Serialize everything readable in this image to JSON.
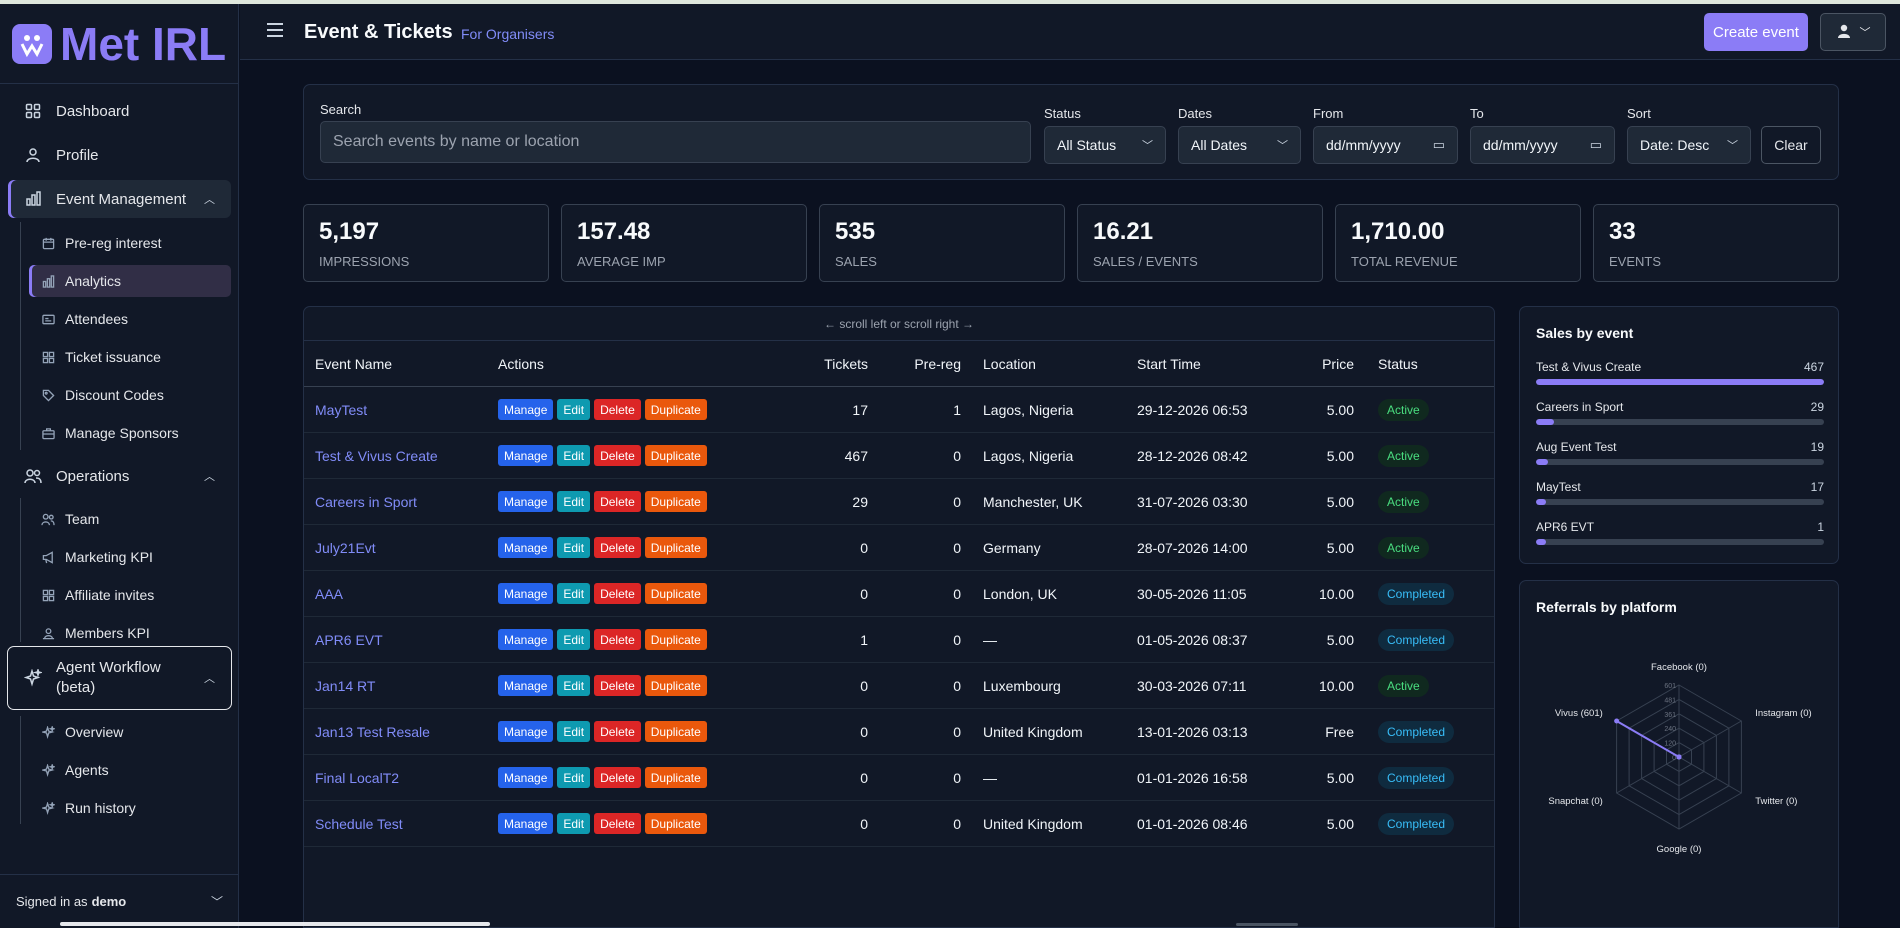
{
  "app": {
    "logo_text": "Met IRL",
    "title": "Event & Tickets",
    "subtitle": "For Organisers",
    "create_event_label": "Create event",
    "accent": "#8b7cf6"
  },
  "sidebar": {
    "items": [
      {
        "label": "Dashboard",
        "icon": "grid-icon"
      },
      {
        "label": "Profile",
        "icon": "user-icon"
      },
      {
        "label": "Event Management",
        "icon": "bar-chart-icon"
      },
      {
        "label": "Operations",
        "icon": "users-icon"
      }
    ],
    "event_sub": [
      {
        "label": "Pre-reg interest",
        "icon": "calendar-icon"
      },
      {
        "label": "Analytics",
        "icon": "bar-chart-icon"
      },
      {
        "label": "Attendees",
        "icon": "id-card-icon"
      },
      {
        "label": "Ticket issuance",
        "icon": "grid-icon"
      },
      {
        "label": "Discount Codes",
        "icon": "tag-icon"
      },
      {
        "label": "Manage Sponsors",
        "icon": "briefcase-icon"
      }
    ],
    "ops_sub": [
      {
        "label": "Team",
        "icon": "users-icon"
      },
      {
        "label": "Marketing KPI",
        "icon": "megaphone-icon"
      },
      {
        "label": "Affiliate invites",
        "icon": "grid-icon"
      },
      {
        "label": "Members KPI",
        "icon": "user-group-icon"
      }
    ],
    "agent": {
      "label_line1": "Agent Workflow",
      "label_line2": "(beta)"
    },
    "agent_sub": [
      {
        "label": "Overview",
        "icon": "sparkle-icon"
      },
      {
        "label": "Agents",
        "icon": "sparkle-icon"
      },
      {
        "label": "Run history",
        "icon": "sparkle-icon"
      }
    ],
    "signed_in_prefix": "Signed in as",
    "signed_in_user": "demo"
  },
  "filters": {
    "search_label": "Search",
    "search_placeholder": "Search events by name or location",
    "status_label": "Status",
    "status_value": "All Status",
    "dates_label": "Dates",
    "dates_value": "All Dates",
    "from_label": "From",
    "from_value": "dd/mm/yyyy",
    "to_label": "To",
    "to_value": "dd/mm/yyyy",
    "sort_label": "Sort",
    "sort_value": "Date: Desc",
    "clear_label": "Clear"
  },
  "kpis": [
    {
      "value": "5,197",
      "label": "IMPRESSIONS"
    },
    {
      "value": "157.48",
      "label": "AVERAGE IMP"
    },
    {
      "value": "535",
      "label": "SALES"
    },
    {
      "value": "16.21",
      "label": "SALES / EVENTS"
    },
    {
      "value": "1,710.00",
      "label": "TOTAL REVENUE"
    },
    {
      "value": "33",
      "label": "EVENTS"
    }
  ],
  "table": {
    "scroll_hint": "← scroll left or scroll right →",
    "headers": [
      "Event Name",
      "Actions",
      "Tickets",
      "Pre-reg",
      "Location",
      "Start Time",
      "Price",
      "Status"
    ],
    "actions": [
      "Manage",
      "Edit",
      "Delete",
      "Duplicate"
    ],
    "rows": [
      {
        "name": "MayTest",
        "tickets": "17",
        "prereg": "1",
        "location": "Lagos, Nigeria",
        "start": "29-12-2026 06:53",
        "price": "5.00",
        "status": "Active"
      },
      {
        "name": "Test & Vivus Create",
        "tickets": "467",
        "prereg": "0",
        "location": "Lagos, Nigeria",
        "start": "28-12-2026 08:42",
        "price": "5.00",
        "status": "Active"
      },
      {
        "name": "Careers in Sport",
        "tickets": "29",
        "prereg": "0",
        "location": "Manchester, UK",
        "start": "31-07-2026 03:30",
        "price": "5.00",
        "status": "Active"
      },
      {
        "name": "July21Evt",
        "tickets": "0",
        "prereg": "0",
        "location": "Germany",
        "start": "28-07-2026 14:00",
        "price": "5.00",
        "status": "Active"
      },
      {
        "name": "AAA",
        "tickets": "0",
        "prereg": "0",
        "location": "London, UK",
        "start": "30-05-2026 11:05",
        "price": "10.00",
        "status": "Completed"
      },
      {
        "name": "APR6 EVT",
        "tickets": "1",
        "prereg": "0",
        "location": "—",
        "start": "01-05-2026 08:37",
        "price": "5.00",
        "status": "Completed"
      },
      {
        "name": "Jan14 RT",
        "tickets": "0",
        "prereg": "0",
        "location": "Luxembourg",
        "start": "30-03-2026 07:11",
        "price": "10.00",
        "status": "Active"
      },
      {
        "name": "Jan13 Test Resale",
        "tickets": "0",
        "prereg": "0",
        "location": "United Kingdom",
        "start": "13-01-2026 03:13",
        "price": "Free",
        "status": "Completed"
      },
      {
        "name": "Final LocalT2",
        "tickets": "0",
        "prereg": "0",
        "location": "—",
        "start": "01-01-2026 16:58",
        "price": "5.00",
        "status": "Completed"
      },
      {
        "name": "Schedule Test",
        "tickets": "0",
        "prereg": "0",
        "location": "United Kingdom",
        "start": "01-01-2026 08:46",
        "price": "5.00",
        "status": "Completed"
      }
    ]
  },
  "sales_by_event": {
    "title": "Sales by event",
    "max": 467,
    "items": [
      {
        "label": "Test & Vivus Create",
        "value": 467
      },
      {
        "label": "Careers in Sport",
        "value": 29
      },
      {
        "label": "Aug Event Test",
        "value": 19
      },
      {
        "label": "MayTest",
        "value": 17
      },
      {
        "label": "APR6 EVT",
        "value": 1
      }
    ]
  },
  "referrals": {
    "title": "Referrals by platform",
    "ticks": [
      "601",
      "481",
      "361",
      "240",
      "120",
      "0"
    ],
    "axes": [
      {
        "label": "Facebook (0)",
        "value": 0
      },
      {
        "label": "Instagram (0)",
        "value": 0
      },
      {
        "label": "Twitter (0)",
        "value": 0
      },
      {
        "label": "Google (0)",
        "value": 0
      },
      {
        "label": "Snapchat (0)",
        "value": 0
      },
      {
        "label": "Vivus (601)",
        "value": 601
      }
    ],
    "max": 601
  },
  "chart_data": [
    {
      "type": "bar",
      "title": "Sales by event",
      "categories": [
        "Test & Vivus Create",
        "Careers in Sport",
        "Aug Event Test",
        "MayTest",
        "APR6 EVT"
      ],
      "values": [
        467,
        29,
        19,
        17,
        1
      ]
    },
    {
      "type": "radar",
      "title": "Referrals by platform",
      "categories": [
        "Facebook",
        "Instagram",
        "Twitter",
        "Google",
        "Snapchat",
        "Vivus"
      ],
      "values": [
        0,
        0,
        0,
        0,
        0,
        601
      ],
      "ylim": [
        0,
        601
      ],
      "ticks": [
        0,
        120,
        240,
        361,
        481,
        601
      ]
    }
  ]
}
